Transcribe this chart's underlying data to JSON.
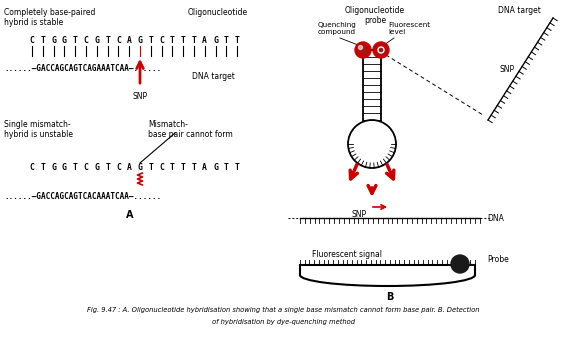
{
  "bg_color": "#ffffff",
  "text_color": "#000000",
  "red_color": "#cc0000",
  "fig_caption_line1": "Fig. 9.47 : A. Oligonucleotide hybridisation showing that a single base mismatch cannot form base pair. B. Detection",
  "fig_caption_line2": "of hybridisation by dye-quenching method",
  "label_A": "A",
  "label_B": "B",
  "label_completely": "Completely base-paired\nhybrid is stable",
  "label_oligonucleotide": "Oligonucleotide",
  "seq_top1": "CTGGTCGTCAGTCTTTAGTT",
  "seq_bot1_pre": "......—GACCAGCAGTCAGAAATCAA—......",
  "label_dna_target": "DNA target",
  "label_snp1": "SNP",
  "label_single": "Single mismatch-\nhybrid is unstable",
  "label_mismatch": "Mismatch-\nbase pair cannot form",
  "seq_top2": "CTGGTCGTCAGTCTTTAGTT",
  "seq_bot2": "......—GACCAGCAGTCACAAATCAA—......",
  "label_oligo_probe": "Oligonucleotide\nprobe",
  "label_dna_target2": "DNA target",
  "label_quenching": "Quenching\ncompound",
  "label_fluorescent_level": "Fluorescent\nlevel",
  "label_snp2": "SNP",
  "label_snp3": "SNP",
  "label_dna": "DNA",
  "label_fluorescent_signal": "Fluorescent signal",
  "label_probe": "Probe"
}
